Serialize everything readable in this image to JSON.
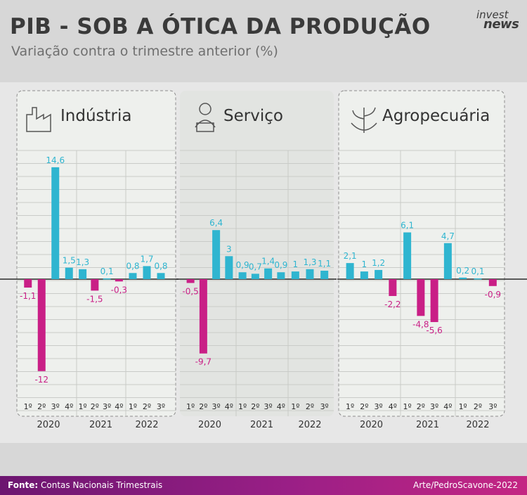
{
  "header": {
    "title": "PIB - SOB A ÓTICA DA PRODUÇÃO",
    "subtitle": "Variação contra o trimestre anterior (%)",
    "logo_line1": "invest",
    "logo_line2": "news"
  },
  "footer": {
    "source_label": "Fonte:",
    "source_text": "Contas Nacionais Trimestrais",
    "credit": "Arte/PedroScavone-2022"
  },
  "colors": {
    "positive": "#2fb5d0",
    "negative": "#c91f86",
    "panel_box": "#eef0ed",
    "grid": "#c9cbc8",
    "axis": "#2a2a2a",
    "text": "#333333"
  },
  "chart_data": [
    {
      "type": "bar",
      "title": "Indústria",
      "icon": "factory-icon",
      "groups": [
        {
          "year": "2020",
          "quarters": [
            "1º",
            "2º",
            "3º",
            "4º"
          ],
          "values": [
            -1.1,
            -12,
            14.6,
            1.5
          ],
          "labels": [
            "-1,1",
            "-12",
            "14,6",
            "1,5"
          ]
        },
        {
          "year": "2021",
          "quarters": [
            "1º",
            "2º",
            "3º",
            "4º"
          ],
          "values": [
            1.3,
            -1.5,
            0.1,
            -0.3
          ],
          "labels": [
            "1,3",
            "-1,5",
            "0,1",
            "-0,3"
          ]
        },
        {
          "year": "2022",
          "quarters": [
            "1º",
            "2º",
            "3º"
          ],
          "values": [
            0.8,
            1.7,
            0.8
          ],
          "labels": [
            "0,8",
            "1,7",
            "0,8"
          ]
        }
      ]
    },
    {
      "type": "bar",
      "title": "Serviço",
      "icon": "worker-laptop-icon",
      "groups": [
        {
          "year": "2020",
          "quarters": [
            "1º",
            "2º",
            "3º",
            "4º"
          ],
          "values": [
            -0.5,
            -9.7,
            6.4,
            3
          ],
          "labels": [
            "-0,5",
            "-9,7",
            "6,4",
            "3"
          ]
        },
        {
          "year": "2021",
          "quarters": [
            "1º",
            "2º",
            "3º",
            "4º"
          ],
          "values": [
            0.9,
            0.7,
            1.4,
            0.9
          ],
          "labels": [
            "0,9",
            "0,7",
            "1,4",
            "0,9"
          ]
        },
        {
          "year": "2022",
          "quarters": [
            "1º",
            "2º",
            "3º"
          ],
          "values": [
            1,
            1.3,
            1.1
          ],
          "labels": [
            "1",
            "1,3",
            "1,1"
          ]
        }
      ]
    },
    {
      "type": "bar",
      "title": "Agropecuária",
      "icon": "plant-icon",
      "groups": [
        {
          "year": "2020",
          "quarters": [
            "1º",
            "2º",
            "3º",
            "4º"
          ],
          "values": [
            2.1,
            1,
            1.2,
            -2.2
          ],
          "labels": [
            "2,1",
            "1",
            "1,2",
            "-2,2"
          ]
        },
        {
          "year": "2021",
          "quarters": [
            "1º",
            "2º",
            "3º",
            "4º"
          ],
          "values": [
            6.1,
            -4.8,
            -5.6,
            4.7
          ],
          "labels": [
            "6,1",
            "-4,8",
            "-5,6",
            "4,7"
          ]
        },
        {
          "year": "2022",
          "quarters": [
            "1º",
            "2º",
            "3º"
          ],
          "values": [
            0.2,
            0.1,
            -0.9
          ],
          "labels": [
            "0,2",
            "0,1",
            "-0,9"
          ]
        }
      ]
    }
  ]
}
